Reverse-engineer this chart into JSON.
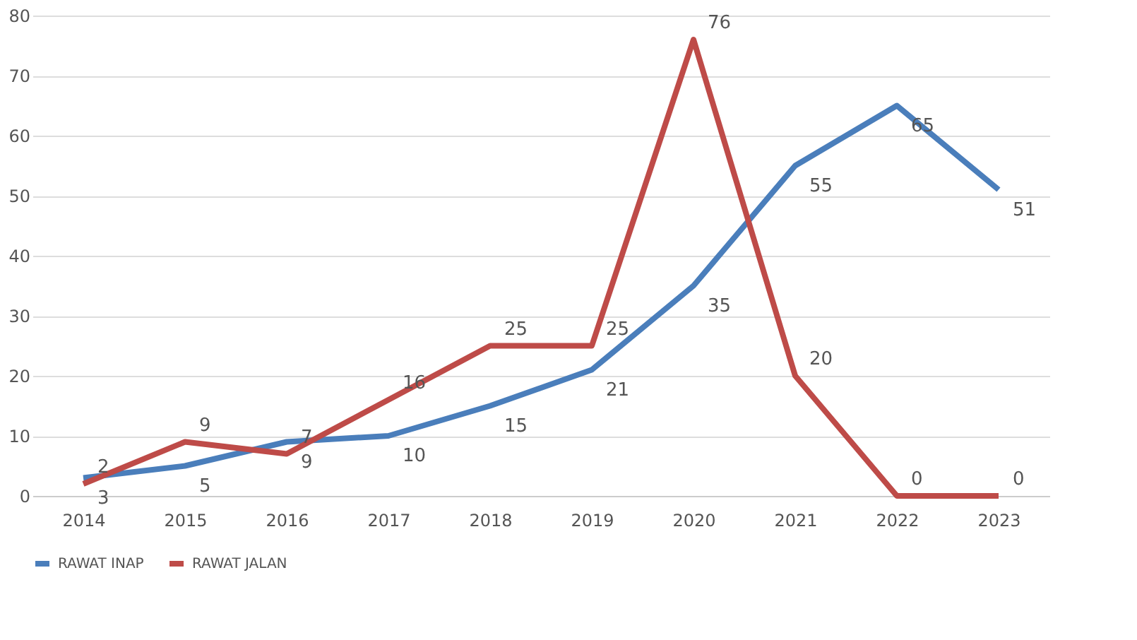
{
  "chart_data": {
    "type": "line",
    "categories": [
      "2014",
      "2015",
      "2016",
      "2017",
      "2018",
      "2019",
      "2020",
      "2021",
      "2022",
      "2023"
    ],
    "series": [
      {
        "name": "RAWAT INAP",
        "color": "#4a7ebb",
        "values": [
          3,
          5,
          9,
          10,
          15,
          21,
          35,
          55,
          65,
          51
        ]
      },
      {
        "name": "RAWAT JALAN",
        "color": "#be4b48",
        "values": [
          2,
          9,
          7,
          16,
          25,
          25,
          76,
          20,
          0,
          0
        ]
      }
    ],
    "ylim": [
      0,
      80
    ],
    "yticks": [
      0,
      10,
      20,
      30,
      40,
      50,
      60,
      70,
      80
    ],
    "grid": "y",
    "legend": "bottom",
    "data_labels": true,
    "marker": "none",
    "line_style": "solid"
  }
}
